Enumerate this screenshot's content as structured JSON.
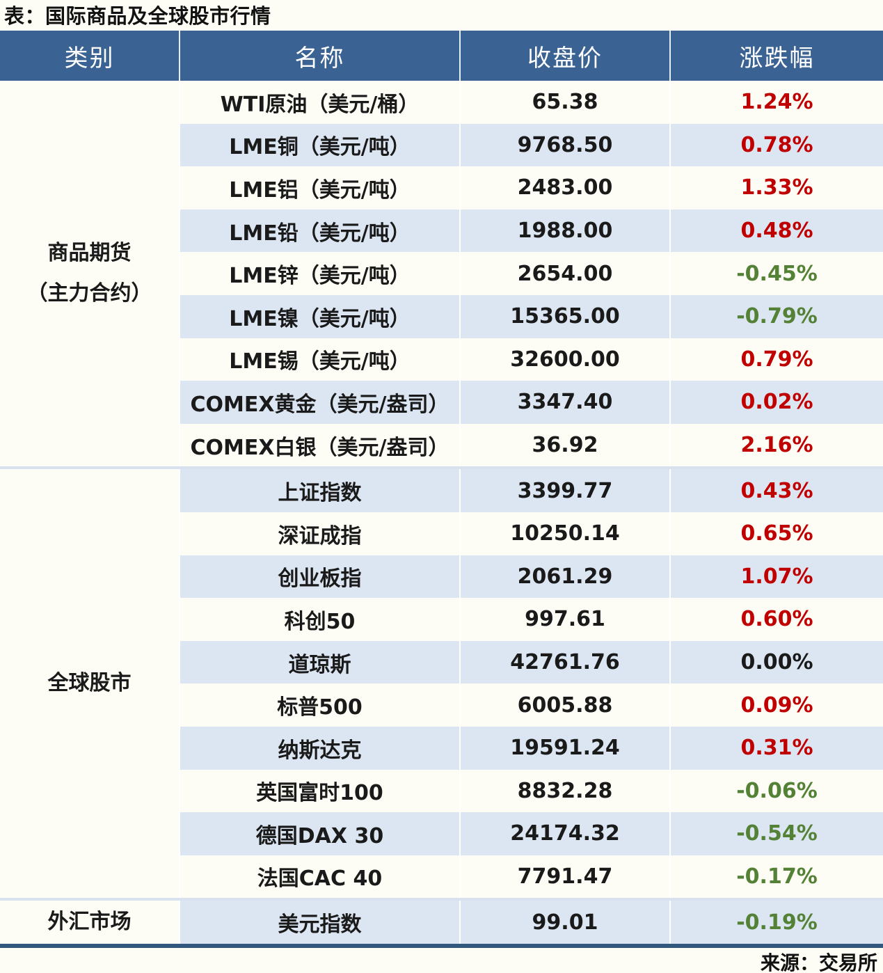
{
  "title": "表：国际商品及全球股市行情",
  "source": "来源：交易所",
  "colors": {
    "header_bg": "#3a6292",
    "stripe_row_bg": "#dce6f2",
    "page_bg": "#fdfdf5",
    "up_red": "#c00000",
    "down_green": "#538135",
    "flat_black": "#1a1a1a",
    "bottom_border": "#33587e",
    "group_separator": "#d8e2ef"
  },
  "chart_data": {
    "type": "table",
    "title": "表：国际商品及全球股市行情",
    "columns": [
      "类别",
      "名称",
      "收盘价",
      "涨跌幅"
    ],
    "groups": [
      {
        "category": "商品期货（主力合约）",
        "category_lines": [
          "商品期货",
          "（主力合约）"
        ],
        "rows": [
          {
            "name": "WTI原油（美元/桶）",
            "close": "65.38",
            "change": "1.24%",
            "direction": "up"
          },
          {
            "name": "LME铜（美元/吨）",
            "close": "9768.50",
            "change": "0.78%",
            "direction": "up"
          },
          {
            "name": "LME铝（美元/吨）",
            "close": "2483.00",
            "change": "1.33%",
            "direction": "up"
          },
          {
            "name": "LME铅（美元/吨）",
            "close": "1988.00",
            "change": "0.48%",
            "direction": "up"
          },
          {
            "name": "LME锌（美元/吨）",
            "close": "2654.00",
            "change": "-0.45%",
            "direction": "down"
          },
          {
            "name": "LME镍（美元/吨）",
            "close": "15365.00",
            "change": "-0.79%",
            "direction": "down"
          },
          {
            "name": "LME锡（美元/吨）",
            "close": "32600.00",
            "change": "0.79%",
            "direction": "up"
          },
          {
            "name": "COMEX黄金（美元/盎司）",
            "close": "3347.40",
            "change": "0.02%",
            "direction": "up"
          },
          {
            "name": "COMEX白银（美元/盎司）",
            "close": "36.92",
            "change": "2.16%",
            "direction": "up"
          }
        ]
      },
      {
        "category": "全球股市",
        "category_lines": [
          "全球股市"
        ],
        "rows": [
          {
            "name": "上证指数",
            "close": "3399.77",
            "change": "0.43%",
            "direction": "up"
          },
          {
            "name": "深证成指",
            "close": "10250.14",
            "change": "0.65%",
            "direction": "up"
          },
          {
            "name": "创业板指",
            "close": "2061.29",
            "change": "1.07%",
            "direction": "up"
          },
          {
            "name": "科创50",
            "close": "997.61",
            "change": "0.60%",
            "direction": "up"
          },
          {
            "name": "道琼斯",
            "close": "42761.76",
            "change": "0.00%",
            "direction": "flat"
          },
          {
            "name": "标普500",
            "close": "6005.88",
            "change": "0.09%",
            "direction": "up"
          },
          {
            "name": "纳斯达克",
            "close": "19591.24",
            "change": "0.31%",
            "direction": "up"
          },
          {
            "name": "英国富时100",
            "close": "8832.28",
            "change": "-0.06%",
            "direction": "down"
          },
          {
            "name": "德国DAX 30",
            "close": "24174.32",
            "change": "-0.54%",
            "direction": "down"
          },
          {
            "name": "法国CAC 40",
            "close": "7791.47",
            "change": "-0.17%",
            "direction": "down"
          }
        ]
      },
      {
        "category": "外汇市场",
        "category_lines": [
          "外汇市场"
        ],
        "rows": [
          {
            "name": "美元指数",
            "close": "99.01",
            "change": "-0.19%",
            "direction": "down"
          }
        ]
      }
    ]
  }
}
